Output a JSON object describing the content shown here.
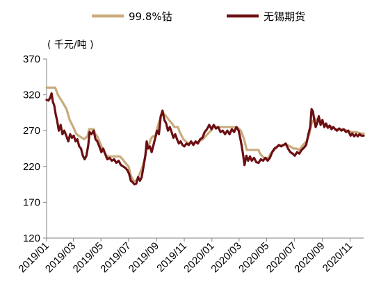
{
  "chart_data": {
    "type": "line",
    "unit_label": "( 千元/吨 )",
    "ylim": [
      120,
      370
    ],
    "yticks": [
      120,
      170,
      220,
      270,
      320,
      370
    ],
    "xlim": [
      "2019-01-01",
      "2020-12-01"
    ],
    "xticks": [
      "2019/01",
      "2019/03",
      "2019/05",
      "2019/07",
      "2019/09",
      "2019/11",
      "2020/01",
      "2020/03",
      "2020/05",
      "2020/07",
      "2020/09",
      "2020/11"
    ],
    "grid": false,
    "legend_position": "top",
    "series": [
      {
        "name": "99.8%钴",
        "color": "#c9ab7c",
        "points": [
          [
            "2019-01-01",
            330
          ],
          [
            "2019-01-20",
            330
          ],
          [
            "2019-01-26",
            320
          ],
          [
            "2019-02-05",
            310
          ],
          [
            "2019-02-14",
            300
          ],
          [
            "2019-02-21",
            285
          ],
          [
            "2019-03-01",
            275
          ],
          [
            "2019-03-08",
            265
          ],
          [
            "2019-03-15",
            262
          ],
          [
            "2019-03-25",
            258
          ],
          [
            "2019-04-01",
            262
          ],
          [
            "2019-04-05",
            272
          ],
          [
            "2019-04-15",
            272
          ],
          [
            "2019-04-18",
            266
          ],
          [
            "2019-04-23",
            262
          ],
          [
            "2019-05-01",
            250
          ],
          [
            "2019-05-08",
            240
          ],
          [
            "2019-05-15",
            234
          ],
          [
            "2019-06-01",
            234
          ],
          [
            "2019-06-12",
            234
          ],
          [
            "2019-06-18",
            230
          ],
          [
            "2019-06-24",
            225
          ],
          [
            "2019-07-01",
            220
          ],
          [
            "2019-07-06",
            207
          ],
          [
            "2019-07-12",
            200
          ],
          [
            "2019-07-18",
            200
          ],
          [
            "2019-07-22",
            205
          ],
          [
            "2019-07-27",
            212
          ],
          [
            "2019-08-01",
            220
          ],
          [
            "2019-08-06",
            232
          ],
          [
            "2019-08-10",
            245
          ],
          [
            "2019-08-15",
            250
          ],
          [
            "2019-08-19",
            258
          ],
          [
            "2019-08-23",
            262
          ],
          [
            "2019-08-29",
            262
          ],
          [
            "2019-09-03",
            275
          ],
          [
            "2019-09-10",
            290
          ],
          [
            "2019-09-15",
            295
          ],
          [
            "2019-09-22",
            290
          ],
          [
            "2019-09-28",
            285
          ],
          [
            "2019-10-05",
            280
          ],
          [
            "2019-10-10",
            275
          ],
          [
            "2019-10-18",
            275
          ],
          [
            "2019-10-22",
            268
          ],
          [
            "2019-10-30",
            258
          ],
          [
            "2019-11-08",
            253
          ],
          [
            "2019-11-18",
            253
          ],
          [
            "2019-11-26",
            253
          ],
          [
            "2019-12-03",
            255
          ],
          [
            "2019-12-12",
            258
          ],
          [
            "2019-12-22",
            265
          ],
          [
            "2019-12-30",
            270
          ],
          [
            "2020-01-05",
            275
          ],
          [
            "2020-01-15",
            275
          ],
          [
            "2020-01-25",
            275
          ],
          [
            "2020-02-10",
            275
          ],
          [
            "2020-02-25",
            275
          ],
          [
            "2020-03-05",
            270
          ],
          [
            "2020-03-12",
            258
          ],
          [
            "2020-03-18",
            243
          ],
          [
            "2020-04-01",
            243
          ],
          [
            "2020-04-13",
            243
          ],
          [
            "2020-04-16",
            238
          ],
          [
            "2020-04-25",
            232
          ],
          [
            "2020-05-04",
            232
          ],
          [
            "2020-05-10",
            238
          ],
          [
            "2020-05-18",
            243
          ],
          [
            "2020-05-25",
            248
          ],
          [
            "2020-06-05",
            250
          ],
          [
            "2020-06-15",
            250
          ],
          [
            "2020-06-22",
            248
          ],
          [
            "2020-06-29",
            245
          ],
          [
            "2020-07-06",
            245
          ],
          [
            "2020-07-12",
            243
          ],
          [
            "2020-07-20",
            250
          ],
          [
            "2020-07-28",
            255
          ],
          [
            "2020-08-03",
            265
          ],
          [
            "2020-08-08",
            280
          ],
          [
            "2020-08-15",
            287
          ],
          [
            "2020-08-22",
            284
          ],
          [
            "2020-09-01",
            280
          ],
          [
            "2020-09-10",
            276
          ],
          [
            "2020-09-20",
            276
          ],
          [
            "2020-10-01",
            272
          ],
          [
            "2020-10-15",
            272
          ],
          [
            "2020-10-25",
            270
          ],
          [
            "2020-11-05",
            268
          ],
          [
            "2020-11-15",
            268
          ],
          [
            "2020-11-25",
            266
          ],
          [
            "2020-12-01",
            266
          ]
        ]
      },
      {
        "name": "无锡期货",
        "color": "#6b0f13",
        "points": [
          [
            "2019-01-01",
            313
          ],
          [
            "2019-01-05",
            312
          ],
          [
            "2019-01-09",
            316
          ],
          [
            "2019-01-12",
            322
          ],
          [
            "2019-01-15",
            310
          ],
          [
            "2019-01-18",
            305
          ],
          [
            "2019-01-21",
            293
          ],
          [
            "2019-01-24",
            285
          ],
          [
            "2019-01-28",
            270
          ],
          [
            "2019-02-01",
            278
          ],
          [
            "2019-02-05",
            265
          ],
          [
            "2019-02-09",
            270
          ],
          [
            "2019-02-14",
            262
          ],
          [
            "2019-02-18",
            255
          ],
          [
            "2019-02-22",
            265
          ],
          [
            "2019-02-26",
            260
          ],
          [
            "2019-03-02",
            263
          ],
          [
            "2019-03-06",
            255
          ],
          [
            "2019-03-10",
            258
          ],
          [
            "2019-03-14",
            248
          ],
          [
            "2019-03-18",
            245
          ],
          [
            "2019-03-22",
            235
          ],
          [
            "2019-03-26",
            230
          ],
          [
            "2019-03-30",
            235
          ],
          [
            "2019-04-03",
            250
          ],
          [
            "2019-04-06",
            268
          ],
          [
            "2019-04-10",
            265
          ],
          [
            "2019-04-15",
            270
          ],
          [
            "2019-04-19",
            258
          ],
          [
            "2019-04-23",
            255
          ],
          [
            "2019-04-28",
            247
          ],
          [
            "2019-05-02",
            240
          ],
          [
            "2019-05-06",
            245
          ],
          [
            "2019-05-10",
            238
          ],
          [
            "2019-05-15",
            230
          ],
          [
            "2019-05-20",
            232
          ],
          [
            "2019-05-25",
            228
          ],
          [
            "2019-05-30",
            230
          ],
          [
            "2019-06-04",
            225
          ],
          [
            "2019-06-09",
            228
          ],
          [
            "2019-06-14",
            222
          ],
          [
            "2019-06-19",
            220
          ],
          [
            "2019-06-24",
            218
          ],
          [
            "2019-06-28",
            215
          ],
          [
            "2019-07-02",
            210
          ],
          [
            "2019-07-06",
            200
          ],
          [
            "2019-07-10",
            198
          ],
          [
            "2019-07-14",
            195
          ],
          [
            "2019-07-18",
            196
          ],
          [
            "2019-07-22",
            205
          ],
          [
            "2019-07-26",
            200
          ],
          [
            "2019-07-30",
            205
          ],
          [
            "2019-08-03",
            220
          ],
          [
            "2019-08-07",
            235
          ],
          [
            "2019-08-10",
            255
          ],
          [
            "2019-08-13",
            245
          ],
          [
            "2019-08-17",
            248
          ],
          [
            "2019-08-21",
            240
          ],
          [
            "2019-08-25",
            250
          ],
          [
            "2019-08-29",
            260
          ],
          [
            "2019-09-02",
            270
          ],
          [
            "2019-09-06",
            265
          ],
          [
            "2019-09-10",
            290
          ],
          [
            "2019-09-14",
            298
          ],
          [
            "2019-09-18",
            285
          ],
          [
            "2019-09-22",
            280
          ],
          [
            "2019-09-26",
            270
          ],
          [
            "2019-09-30",
            275
          ],
          [
            "2019-10-04",
            268
          ],
          [
            "2019-10-08",
            260
          ],
          [
            "2019-10-12",
            265
          ],
          [
            "2019-10-16",
            258
          ],
          [
            "2019-10-20",
            252
          ],
          [
            "2019-10-24",
            255
          ],
          [
            "2019-10-28",
            250
          ],
          [
            "2019-11-01",
            248
          ],
          [
            "2019-11-06",
            252
          ],
          [
            "2019-11-11",
            250
          ],
          [
            "2019-11-16",
            255
          ],
          [
            "2019-11-21",
            250
          ],
          [
            "2019-11-26",
            255
          ],
          [
            "2019-12-01",
            252
          ],
          [
            "2019-12-06",
            258
          ],
          [
            "2019-12-11",
            260
          ],
          [
            "2019-12-16",
            268
          ],
          [
            "2019-12-21",
            272
          ],
          [
            "2019-12-26",
            278
          ],
          [
            "2019-12-31",
            272
          ],
          [
            "2020-01-05",
            278
          ],
          [
            "2020-01-10",
            273
          ],
          [
            "2020-01-15",
            275
          ],
          [
            "2020-01-20",
            268
          ],
          [
            "2020-01-25",
            270
          ],
          [
            "2020-01-30",
            265
          ],
          [
            "2020-02-04",
            270
          ],
          [
            "2020-02-09",
            265
          ],
          [
            "2020-02-14",
            272
          ],
          [
            "2020-02-19",
            268
          ],
          [
            "2020-02-24",
            275
          ],
          [
            "2020-02-29",
            270
          ],
          [
            "2020-03-05",
            255
          ],
          [
            "2020-03-09",
            240
          ],
          [
            "2020-03-13",
            222
          ],
          [
            "2020-03-17",
            235
          ],
          [
            "2020-03-21",
            228
          ],
          [
            "2020-03-25",
            234
          ],
          [
            "2020-03-29",
            228
          ],
          [
            "2020-04-03",
            232
          ],
          [
            "2020-04-08",
            226
          ],
          [
            "2020-04-13",
            225
          ],
          [
            "2020-04-18",
            230
          ],
          [
            "2020-04-23",
            228
          ],
          [
            "2020-04-28",
            232
          ],
          [
            "2020-05-03",
            228
          ],
          [
            "2020-05-08",
            232
          ],
          [
            "2020-05-13",
            240
          ],
          [
            "2020-05-18",
            245
          ],
          [
            "2020-05-23",
            247
          ],
          [
            "2020-05-28",
            250
          ],
          [
            "2020-06-02",
            248
          ],
          [
            "2020-06-07",
            250
          ],
          [
            "2020-06-12",
            252
          ],
          [
            "2020-06-17",
            245
          ],
          [
            "2020-06-22",
            240
          ],
          [
            "2020-06-27",
            238
          ],
          [
            "2020-07-02",
            235
          ],
          [
            "2020-07-07",
            240
          ],
          [
            "2020-07-12",
            238
          ],
          [
            "2020-07-17",
            243
          ],
          [
            "2020-07-22",
            246
          ],
          [
            "2020-07-27",
            250
          ],
          [
            "2020-08-01",
            265
          ],
          [
            "2020-08-05",
            275
          ],
          [
            "2020-08-08",
            300
          ],
          [
            "2020-08-11",
            297
          ],
          [
            "2020-08-14",
            285
          ],
          [
            "2020-08-17",
            275
          ],
          [
            "2020-08-20",
            280
          ],
          [
            "2020-08-24",
            290
          ],
          [
            "2020-08-28",
            278
          ],
          [
            "2020-09-01",
            285
          ],
          [
            "2020-09-05",
            275
          ],
          [
            "2020-09-09",
            280
          ],
          [
            "2020-09-13",
            274
          ],
          [
            "2020-09-17",
            277
          ],
          [
            "2020-09-21",
            272
          ],
          [
            "2020-09-25",
            275
          ],
          [
            "2020-09-29",
            272
          ],
          [
            "2020-10-03",
            270
          ],
          [
            "2020-10-08",
            273
          ],
          [
            "2020-10-13",
            270
          ],
          [
            "2020-10-18",
            272
          ],
          [
            "2020-10-23",
            268
          ],
          [
            "2020-10-28",
            270
          ],
          [
            "2020-11-02",
            263
          ],
          [
            "2020-11-06",
            266
          ],
          [
            "2020-11-10",
            262
          ],
          [
            "2020-11-14",
            265
          ],
          [
            "2020-11-18",
            262
          ],
          [
            "2020-11-22",
            265
          ],
          [
            "2020-11-26",
            263
          ],
          [
            "2020-12-01",
            263
          ]
        ]
      }
    ]
  }
}
